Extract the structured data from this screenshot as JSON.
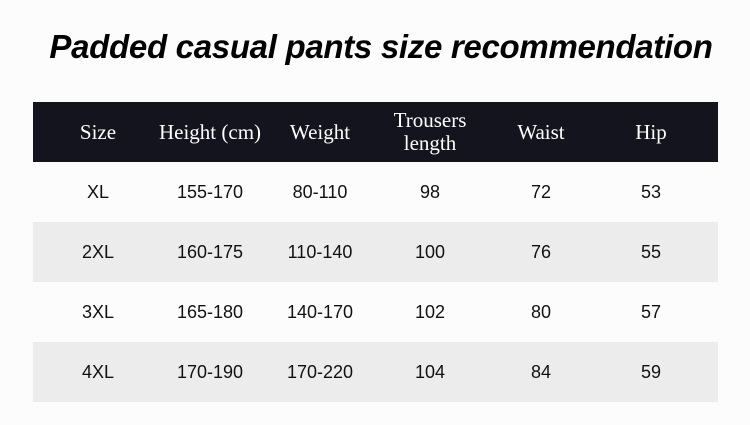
{
  "title": "Padded casual pants size recommendation",
  "headers": [
    "Size",
    "Height (cm)",
    "Weight",
    "Trousers length",
    "Waist",
    "Hip"
  ],
  "rows": [
    [
      "XL",
      "155-170",
      "80-110",
      "98",
      "72",
      "53"
    ],
    [
      "2XL",
      "160-175",
      "110-140",
      "100",
      "76",
      "55"
    ],
    [
      "3XL",
      "165-180",
      "140-170",
      "102",
      "80",
      "57"
    ],
    [
      "4XL",
      "170-190",
      "170-220",
      "104",
      "84",
      "59"
    ]
  ],
  "colors": {
    "header_bg": "#14141e",
    "alt_row_bg": "#ececec"
  }
}
